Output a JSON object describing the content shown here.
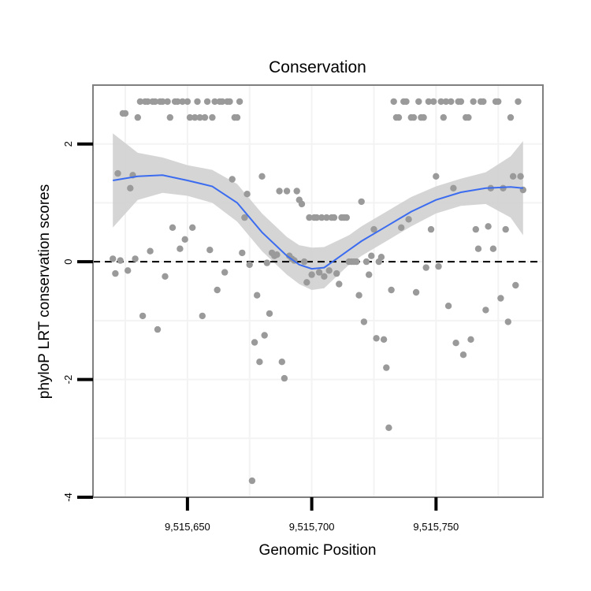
{
  "chart_data": {
    "type": "scatter",
    "title": "Conservation",
    "xlabel": "Genomic Position",
    "ylabel": "phyloP LRT conservation scores",
    "xlim": [
      9515612,
      9515793
    ],
    "ylim": [
      -4.0,
      3.0
    ],
    "x_ticks": [
      {
        "value": 9515650,
        "label": "9,515,650"
      },
      {
        "value": 9515700,
        "label": "9,515,700"
      },
      {
        "value": 9515750,
        "label": "9,515,750"
      }
    ],
    "y_ticks": [
      {
        "value": 2,
        "label": "2"
      },
      {
        "value": 0,
        "label": "0"
      },
      {
        "value": -2,
        "label": "-2"
      },
      {
        "value": -4,
        "label": "-4"
      }
    ],
    "reference_line": {
      "y": 0,
      "style": "dashed"
    },
    "colors": {
      "points": "#9a9a9a",
      "smooth": "#3b6cf0",
      "ribbon": "#d0d0d0",
      "frame": "#7f7f7f",
      "grid": "#f3f3f3"
    },
    "points": [
      [
        9515620,
        0.05
      ],
      [
        9515621,
        -0.2
      ],
      [
        9515622,
        1.5
      ],
      [
        9515623,
        0.02
      ],
      [
        9515624,
        2.52
      ],
      [
        9515625,
        2.52
      ],
      [
        9515626,
        -0.15
      ],
      [
        9515627,
        1.25
      ],
      [
        9515628,
        1.47
      ],
      [
        9515629,
        0.05
      ],
      [
        9515630,
        2.45
      ],
      [
        9515631,
        2.72
      ],
      [
        9515632,
        -0.92
      ],
      [
        9515633,
        2.72
      ],
      [
        9515634,
        2.72
      ],
      [
        9515635,
        0.18
      ],
      [
        9515636,
        2.72
      ],
      [
        9515637,
        2.72
      ],
      [
        9515638,
        -1.15
      ],
      [
        9515639,
        2.72
      ],
      [
        9515640,
        2.72
      ],
      [
        9515641,
        -0.25
      ],
      [
        9515642,
        2.72
      ],
      [
        9515643,
        2.45
      ],
      [
        9515644,
        0.58
      ],
      [
        9515645,
        2.72
      ],
      [
        9515646,
        2.72
      ],
      [
        9515647,
        0.22
      ],
      [
        9515648,
        2.72
      ],
      [
        9515649,
        0.38
      ],
      [
        9515650,
        2.72
      ],
      [
        9515651,
        2.45
      ],
      [
        9515652,
        0.58
      ],
      [
        9515653,
        2.45
      ],
      [
        9515654,
        2.72
      ],
      [
        9515655,
        2.45
      ],
      [
        9515656,
        -0.92
      ],
      [
        9515657,
        2.45
      ],
      [
        9515658,
        2.72
      ],
      [
        9515659,
        0.2
      ],
      [
        9515660,
        2.45
      ],
      [
        9515661,
        2.72
      ],
      [
        9515662,
        -0.48
      ],
      [
        9515663,
        2.72
      ],
      [
        9515664,
        2.72
      ],
      [
        9515665,
        -0.18
      ],
      [
        9515666,
        2.72
      ],
      [
        9515667,
        2.72
      ],
      [
        9515668,
        1.4
      ],
      [
        9515669,
        2.45
      ],
      [
        9515670,
        2.45
      ],
      [
        9515671,
        2.72
      ],
      [
        9515672,
        0.15
      ],
      [
        9515673,
        0.75
      ],
      [
        9515674,
        1.15
      ],
      [
        9515675,
        -0.05
      ],
      [
        9515676,
        -3.72
      ],
      [
        9515677,
        -1.37
      ],
      [
        9515678,
        -0.57
      ],
      [
        9515679,
        -1.7
      ],
      [
        9515680,
        1.45
      ],
      [
        9515681,
        -1.25
      ],
      [
        9515682,
        -0.02
      ],
      [
        9515683,
        -0.88
      ],
      [
        9515684,
        0.15
      ],
      [
        9515685,
        0.1
      ],
      [
        9515686,
        0.12
      ],
      [
        9515687,
        1.2
      ],
      [
        9515688,
        -1.7
      ],
      [
        9515689,
        -1.98
      ],
      [
        9515690,
        1.2
      ],
      [
        9515691,
        0.1
      ],
      [
        9515692,
        0.05
      ],
      [
        9515693,
        0.02
      ],
      [
        9515694,
        1.2
      ],
      [
        9515695,
        1.05
      ],
      [
        9515696,
        0.98
      ],
      [
        9515697,
        0.0
      ],
      [
        9515698,
        -0.35
      ],
      [
        9515699,
        0.75
      ],
      [
        9515700,
        -0.22
      ],
      [
        9515701,
        0.75
      ],
      [
        9515702,
        0.75
      ],
      [
        9515703,
        -0.18
      ],
      [
        9515704,
        0.75
      ],
      [
        9515705,
        -0.25
      ],
      [
        9515706,
        0.75
      ],
      [
        9515707,
        -0.15
      ],
      [
        9515708,
        0.75
      ],
      [
        9515709,
        0.75
      ],
      [
        9515710,
        -0.2
      ],
      [
        9515711,
        -0.38
      ],
      [
        9515712,
        0.75
      ],
      [
        9515713,
        0.75
      ],
      [
        9515714,
        0.75
      ],
      [
        9515715,
        0.0
      ],
      [
        9515716,
        0.0
      ],
      [
        9515717,
        0.0
      ],
      [
        9515718,
        0.0
      ],
      [
        9515719,
        -0.57
      ],
      [
        9515720,
        1.02
      ],
      [
        9515721,
        -1.02
      ],
      [
        9515722,
        0.0
      ],
      [
        9515723,
        -0.22
      ],
      [
        9515724,
        0.1
      ],
      [
        9515725,
        0.55
      ],
      [
        9515726,
        -1.3
      ],
      [
        9515727,
        0.0
      ],
      [
        9515728,
        0.08
      ],
      [
        9515729,
        -1.32
      ],
      [
        9515730,
        -1.8
      ],
      [
        9515731,
        -2.82
      ],
      [
        9515732,
        -0.48
      ],
      [
        9515733,
        2.72
      ],
      [
        9515734,
        2.45
      ],
      [
        9515735,
        2.45
      ],
      [
        9515736,
        0.58
      ],
      [
        9515737,
        2.72
      ],
      [
        9515738,
        2.72
      ],
      [
        9515739,
        0.72
      ],
      [
        9515740,
        2.45
      ],
      [
        9515741,
        2.45
      ],
      [
        9515742,
        -0.52
      ],
      [
        9515743,
        2.72
      ],
      [
        9515744,
        2.45
      ],
      [
        9515745,
        2.45
      ],
      [
        9515746,
        -0.1
      ],
      [
        9515747,
        2.72
      ],
      [
        9515748,
        0.55
      ],
      [
        9515749,
        2.72
      ],
      [
        9515750,
        1.45
      ],
      [
        9515751,
        -0.08
      ],
      [
        9515752,
        2.72
      ],
      [
        9515753,
        2.45
      ],
      [
        9515754,
        2.72
      ],
      [
        9515755,
        -0.75
      ],
      [
        9515756,
        2.72
      ],
      [
        9515757,
        1.25
      ],
      [
        9515758,
        -1.38
      ],
      [
        9515759,
        2.72
      ],
      [
        9515760,
        2.72
      ],
      [
        9515761,
        -1.58
      ],
      [
        9515762,
        2.45
      ],
      [
        9515763,
        2.45
      ],
      [
        9515764,
        -1.32
      ],
      [
        9515765,
        2.72
      ],
      [
        9515766,
        0.55
      ],
      [
        9515767,
        0.22
      ],
      [
        9515768,
        2.72
      ],
      [
        9515769,
        2.72
      ],
      [
        9515770,
        -0.82
      ],
      [
        9515771,
        0.6
      ],
      [
        9515772,
        1.25
      ],
      [
        9515773,
        0.22
      ],
      [
        9515774,
        2.72
      ],
      [
        9515775,
        2.72
      ],
      [
        9515776,
        -0.62
      ],
      [
        9515777,
        1.25
      ],
      [
        9515778,
        0.55
      ],
      [
        9515779,
        -1.02
      ],
      [
        9515780,
        2.45
      ],
      [
        9515781,
        1.45
      ],
      [
        9515782,
        -0.4
      ],
      [
        9515783,
        2.72
      ],
      [
        9515784,
        1.45
      ],
      [
        9515785,
        1.22
      ]
    ],
    "smooth_line": {
      "method": "loess",
      "x": [
        9515620,
        9515630,
        9515640,
        9515650,
        9515660,
        9515670,
        9515680,
        9515690,
        9515695,
        9515700,
        9515705,
        9515710,
        9515715,
        9515720,
        9515730,
        9515740,
        9515750,
        9515760,
        9515770,
        9515780,
        9515785
      ],
      "y": [
        1.38,
        1.45,
        1.47,
        1.38,
        1.28,
        1.0,
        0.5,
        0.1,
        -0.05,
        -0.12,
        -0.1,
        0.05,
        0.2,
        0.35,
        0.6,
        0.85,
        1.05,
        1.18,
        1.25,
        1.27,
        1.25
      ],
      "lower": [
        0.58,
        1.05,
        1.17,
        1.12,
        1.0,
        0.68,
        0.18,
        -0.22,
        -0.38,
        -0.48,
        -0.45,
        -0.25,
        -0.05,
        0.1,
        0.35,
        0.6,
        0.82,
        0.95,
        0.98,
        0.75,
        0.45
      ],
      "upper": [
        2.18,
        1.85,
        1.77,
        1.64,
        1.56,
        1.32,
        0.82,
        0.42,
        0.28,
        0.24,
        0.25,
        0.35,
        0.45,
        0.6,
        0.85,
        1.1,
        1.28,
        1.41,
        1.52,
        1.79,
        2.05
      ]
    }
  }
}
